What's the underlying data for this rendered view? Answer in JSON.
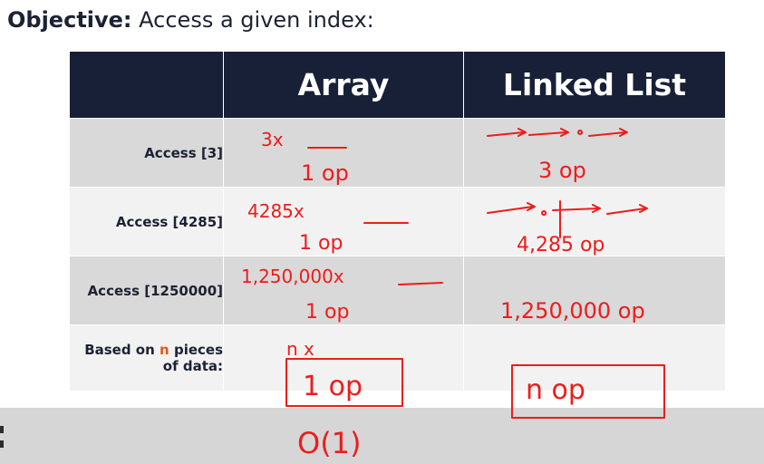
{
  "title": {
    "bold": "Objective:",
    "rest": "Access a given index:"
  },
  "table": {
    "headers": [
      "",
      "Array",
      "Linked List"
    ],
    "rows": [
      {
        "label": "Access [3]",
        "array_note": "3x",
        "array_result": "1 op",
        "list_result": "3 op"
      },
      {
        "label": "Access [4285]",
        "array_note": "4285x",
        "array_result": "1 op",
        "list_result": "4,285 op"
      },
      {
        "label": "Access [1250000]",
        "array_note": "1,250,000x",
        "array_result": "1 op",
        "list_result": "1,250,000 op"
      },
      {
        "label_prefix": "Based on",
        "label_highlight": "n",
        "label_mid": "pieces",
        "label_line2": "of data:",
        "array_note": "n x",
        "array_result": "1 op",
        "list_result": "n op"
      }
    ]
  },
  "annotation": {
    "big_o": "O(1)"
  },
  "colors": {
    "header_bg": "#172036",
    "ink": "#ee1c1c",
    "highlight": "#e05a14"
  }
}
